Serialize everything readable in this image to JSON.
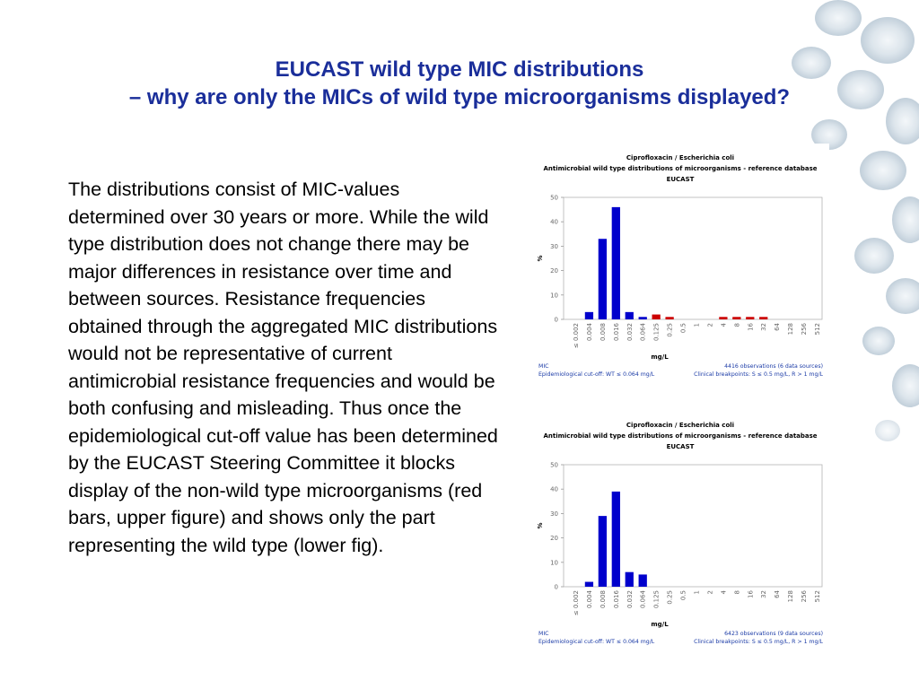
{
  "slide": {
    "title_line1": "EUCAST wild type MIC distributions",
    "title_line2": "– why are only the MICs of wild type microorganisms displayed?",
    "body": "The distributions consist of MIC-values determined over 30 years or more. While the wild type distribution does not change there may be major differences in resistance over time and between sources. Resistance frequencies obtained through the aggregated MIC distributions would not be representative of current antimicrobial resistance frequencies and would be both confusing and misleading. Thus once the epidemiological cut-off value has been determined by the EUCAST Steering Committee it blocks display of the non-wild type microorganisms (red bars, upper figure) and shows only the part representing the wild type (lower fig)."
  },
  "colors": {
    "title": "#1a2e9a",
    "wild_type_bar": "#0000cc",
    "non_wild_type_bar": "#cc0000",
    "footer_text": "#1a3aa6"
  },
  "chart_data": [
    {
      "type": "bar",
      "title": "Ciprofloxacin / Escherichia coli",
      "subtitle": "Antimicrobial wild type distributions of microorganisms - reference database",
      "source": "EUCAST",
      "xlabel": "mg/L",
      "ylabel": "%",
      "ylim": [
        0,
        50
      ],
      "yticks": [
        0,
        10,
        20,
        30,
        40,
        50
      ],
      "categories": [
        "≤ 0.002",
        "0.004",
        "0.008",
        "0.016",
        "0.032",
        "0.064",
        "0.125",
        "0.25",
        "0.5",
        "1",
        "2",
        "4",
        "8",
        "16",
        "32",
        "64",
        "128",
        "256",
        "512"
      ],
      "values": [
        0,
        3,
        33,
        46,
        3,
        1,
        2,
        1,
        0,
        0,
        0,
        1,
        1,
        1,
        1,
        0,
        0,
        0,
        0
      ],
      "bar_colors": [
        "blue",
        "blue",
        "blue",
        "blue",
        "blue",
        "blue",
        "red",
        "red",
        "red",
        "red",
        "red",
        "red",
        "red",
        "red",
        "red",
        "red",
        "red",
        "red",
        "red"
      ],
      "footer": {
        "left_top": "MIC",
        "left_bottom": "Epidemiological cut-off: WT ≤ 0.064 mg/L",
        "right_top": "4416 observations (6 data sources)",
        "right_bottom": "Clinical breakpoints: S ≤ 0.5 mg/L,  R > 1 mg/L"
      }
    },
    {
      "type": "bar",
      "title": "Ciprofloxacin / Escherichia coli",
      "subtitle": "Antimicrobial wild type distributions of microorganisms - reference database",
      "source": "EUCAST",
      "xlabel": "mg/L",
      "ylabel": "%",
      "ylim": [
        0,
        50
      ],
      "yticks": [
        0,
        10,
        20,
        30,
        40,
        50
      ],
      "categories": [
        "≤ 0.002",
        "0.004",
        "0.008",
        "0.016",
        "0.032",
        "0.064",
        "0.125",
        "0.25",
        "0.5",
        "1",
        "2",
        "4",
        "8",
        "16",
        "32",
        "64",
        "128",
        "256",
        "512"
      ],
      "values": [
        0,
        2,
        29,
        39,
        6,
        5,
        0,
        0,
        0,
        0,
        0,
        0,
        0,
        0,
        0,
        0,
        0,
        0,
        0
      ],
      "bar_colors": [
        "blue",
        "blue",
        "blue",
        "blue",
        "blue",
        "blue",
        "blue",
        "blue",
        "blue",
        "blue",
        "blue",
        "blue",
        "blue",
        "blue",
        "blue",
        "blue",
        "blue",
        "blue",
        "blue"
      ],
      "footer": {
        "left_top": "MIC",
        "left_bottom": "Epidemiological cut-off: WT ≤ 0.064 mg/L",
        "right_top": "6423 observations (9 data sources)",
        "right_bottom": "Clinical breakpoints: S ≤ 0.5 mg/L,  R > 1 mg/L"
      }
    }
  ]
}
